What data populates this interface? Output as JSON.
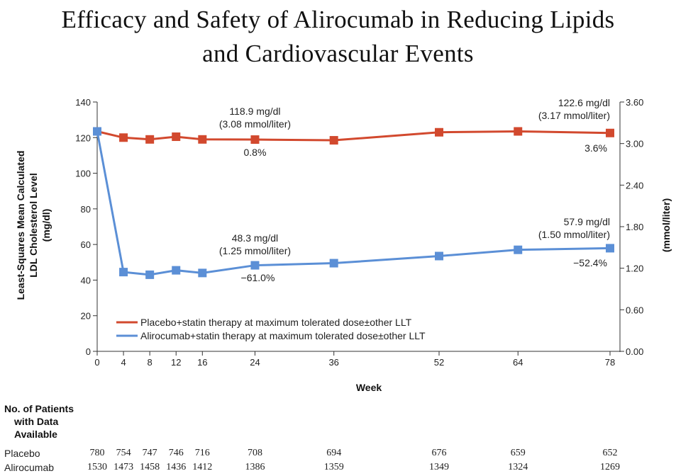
{
  "title_lines": [
    "Efficacy and Safety of Alirocumab in Reducing Lipids",
    "and Cardiovascular Events"
  ],
  "chart_data": {
    "type": "line",
    "x": [
      0,
      4,
      8,
      12,
      16,
      24,
      36,
      52,
      64,
      78
    ],
    "xlabel": "Week",
    "ylabel_lines": [
      "Least-Squares Mean Calculated",
      "LDL Cholesterol Level",
      "(mg/dl)"
    ],
    "ylabel_right": "(mmol/liter)",
    "ylim": [
      0,
      140
    ],
    "yticks": [
      0,
      20,
      40,
      60,
      80,
      100,
      120,
      140
    ],
    "y2lim": [
      0,
      3.6
    ],
    "y2ticks": [
      "0.00",
      "0.60",
      "1.20",
      "1.80",
      "2.40",
      "3.00",
      "3.60"
    ],
    "series": [
      {
        "name": "Placebo+statin therapy at maximum tolerated dose±other LLT",
        "color": "#d2492e",
        "values": [
          123.5,
          120,
          119,
          120.5,
          119,
          118.9,
          118.5,
          123,
          123.5,
          122.6
        ]
      },
      {
        "name": "Alirocumab+statin therapy at maximum tolerated dose±other LLT",
        "color": "#5b8fd6",
        "values": [
          123.5,
          44.5,
          43,
          45.5,
          44,
          48.3,
          49.5,
          53.5,
          57,
          57.9
        ]
      }
    ],
    "annotations": {
      "placebo_w24": [
        "118.9 mg/dl",
        "(3.08 mmol/liter)"
      ],
      "placebo_w24_pct": "0.8%",
      "placebo_w78": [
        "122.6 mg/dl",
        "(3.17 mmol/liter)"
      ],
      "placebo_w78_pct": "3.6%",
      "aliro_w24": [
        "48.3 mg/dl",
        "(1.25 mmol/liter)"
      ],
      "aliro_w24_pct": "−61.0%",
      "aliro_w78": [
        "57.9 mg/dl",
        "(1.50 mmol/liter)"
      ],
      "aliro_w78_pct": "−52.4%"
    },
    "legend_position": "lower-left"
  },
  "patients_table": {
    "header_lines": [
      "No. of Patients",
      "with Data",
      "Available"
    ],
    "rows": [
      {
        "label": "Placebo",
        "values": [
          "780",
          "754",
          "747",
          "746",
          "716",
          "708",
          "694",
          "676",
          "659",
          "652"
        ]
      },
      {
        "label": "Alirocumab",
        "values": [
          "1530",
          "1473",
          "1458",
          "1436",
          "1412",
          "1386",
          "1359",
          "1349",
          "1324",
          "1269"
        ]
      }
    ]
  }
}
